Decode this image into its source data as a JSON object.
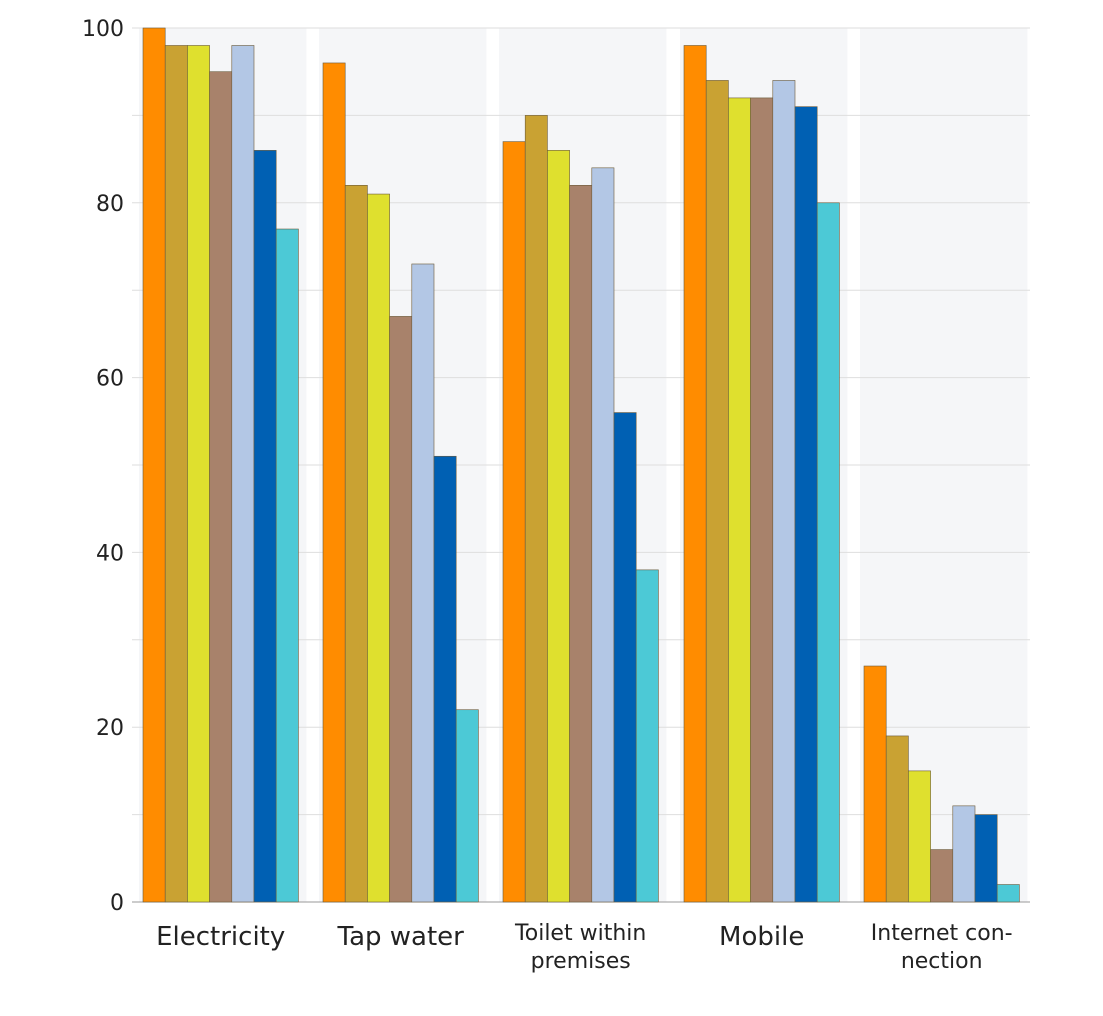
{
  "chart_data": {
    "type": "bar",
    "title": "",
    "xlabel": "",
    "ylabel": "",
    "ylim": [
      0,
      100
    ],
    "yticks": [
      0,
      20,
      40,
      60,
      80,
      100
    ],
    "grid": true,
    "legend": "none",
    "categories": [
      {
        "label": "Electricity",
        "lines": [
          "Electricity"
        ]
      },
      {
        "label": "Tap water",
        "lines": [
          "Tap water"
        ]
      },
      {
        "label": "Toilet within premises",
        "lines": [
          "Toilet within",
          "premises"
        ]
      },
      {
        "label": "Mobile",
        "lines": [
          "Mobile"
        ]
      },
      {
        "label": "Internet connection",
        "lines": [
          "Internet con-",
          "nection"
        ]
      }
    ],
    "series": [
      {
        "color": "#ff8c00",
        "values": [
          100,
          96,
          87,
          98,
          27
        ]
      },
      {
        "color": "#c9a233",
        "values": [
          98,
          82,
          90,
          94,
          19
        ]
      },
      {
        "color": "#dfe02e",
        "values": [
          98,
          81,
          86,
          92,
          15
        ]
      },
      {
        "color": "#a8826b",
        "values": [
          95,
          67,
          82,
          92,
          6
        ]
      },
      {
        "color": "#b3c7e5",
        "values": [
          98,
          73,
          84,
          94,
          11
        ]
      },
      {
        "color": "#0060b3",
        "values": [
          86,
          51,
          56,
          91,
          10
        ]
      },
      {
        "color": "#4cc9d6",
        "values": [
          77,
          22,
          38,
          80,
          2
        ]
      }
    ]
  }
}
